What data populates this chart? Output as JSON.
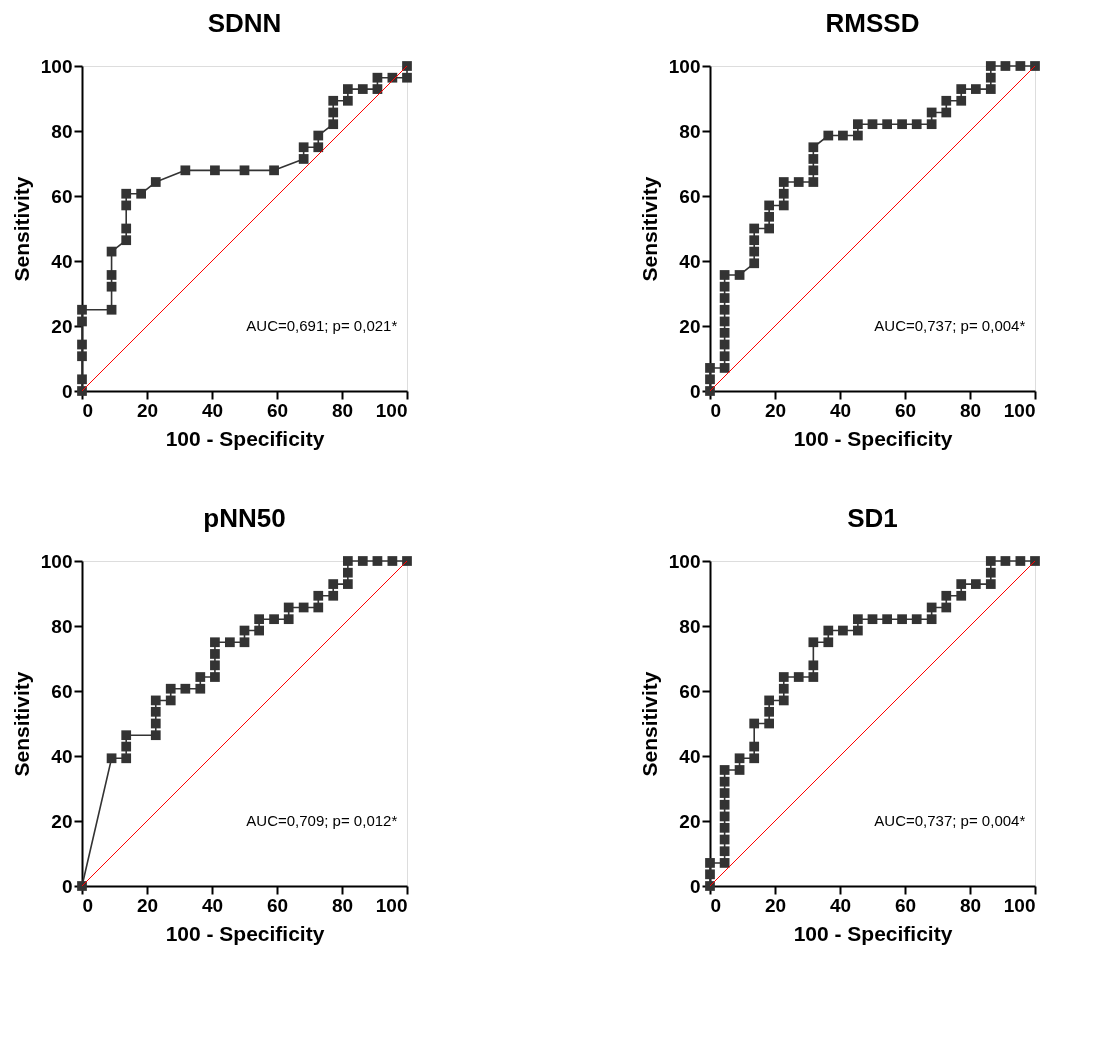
{
  "chart_data": [
    {
      "type": "line",
      "title": "SDNN",
      "xlabel": "100 - Specificity",
      "ylabel": "Sensitivity",
      "xlim": [
        0,
        100
      ],
      "ylim": [
        0,
        100
      ],
      "xticks": [
        0,
        20,
        40,
        60,
        80,
        100
      ],
      "yticks": [
        0,
        20,
        40,
        60,
        80,
        100
      ],
      "grid": false,
      "marker": "square",
      "annotations": [
        "AUC=0,691; p= 0,021*"
      ],
      "series": [
        {
          "color": "#333333",
          "x": [
            0,
            0,
            0,
            0,
            0,
            0,
            9.1,
            9.1,
            9.1,
            9.1,
            13.6,
            13.6,
            13.6,
            13.6,
            18.2,
            22.7,
            31.8,
            40.9,
            50,
            59.1,
            68.2,
            68.2,
            72.7,
            72.7,
            77.3,
            77.3,
            77.3,
            81.8,
            81.8,
            86.4,
            90.9,
            90.9,
            95.5,
            100,
            100
          ],
          "values": [
            0,
            3.6,
            10.7,
            14.3,
            21.4,
            25,
            25,
            32.1,
            35.7,
            42.9,
            46.4,
            50,
            57.1,
            60.7,
            60.7,
            64.3,
            67.9,
            67.9,
            67.9,
            67.9,
            71.4,
            75,
            75,
            78.6,
            82.1,
            85.7,
            89.3,
            89.3,
            92.9,
            92.9,
            92.9,
            96.4,
            96.4,
            96.4,
            100
          ]
        },
        {
          "color": "#ff0000",
          "marker": "none",
          "x": [
            0,
            100
          ],
          "values": [
            0,
            100
          ]
        }
      ]
    },
    {
      "type": "line",
      "title": "RMSSD",
      "xlabel": "100 - Specificity",
      "ylabel": "Sensitivity",
      "xlim": [
        0,
        100
      ],
      "ylim": [
        0,
        100
      ],
      "xticks": [
        0,
        20,
        40,
        60,
        80,
        100
      ],
      "yticks": [
        0,
        20,
        40,
        60,
        80,
        100
      ],
      "grid": false,
      "marker": "square",
      "annotations": [
        "AUC=0,737; p= 0,004*"
      ],
      "series": [
        {
          "color": "#333333",
          "x": [
            0,
            0,
            0,
            4.5,
            4.5,
            4.5,
            4.5,
            4.5,
            4.5,
            4.5,
            4.5,
            4.5,
            9.1,
            13.6,
            13.6,
            13.6,
            13.6,
            18.2,
            18.2,
            18.2,
            22.7,
            22.7,
            22.7,
            27.3,
            31.8,
            31.8,
            31.8,
            31.8,
            36.4,
            40.9,
            45.5,
            45.5,
            50,
            54.5,
            59.1,
            63.6,
            68.2,
            68.2,
            72.7,
            72.7,
            77.3,
            77.3,
            81.8,
            86.4,
            86.4,
            86.4,
            90.9,
            95.5,
            100
          ],
          "values": [
            0,
            3.6,
            7.1,
            7.1,
            10.7,
            14.3,
            17.9,
            21.4,
            25,
            28.6,
            32.1,
            35.7,
            35.7,
            39.3,
            42.9,
            46.4,
            50,
            50,
            53.6,
            57.1,
            57.1,
            60.7,
            64.3,
            64.3,
            64.3,
            67.9,
            71.4,
            75,
            78.6,
            78.6,
            78.6,
            82.1,
            82.1,
            82.1,
            82.1,
            82.1,
            82.1,
            85.7,
            85.7,
            89.3,
            89.3,
            92.9,
            92.9,
            92.9,
            96.4,
            100,
            100,
            100,
            100
          ]
        },
        {
          "color": "#ff0000",
          "marker": "none",
          "x": [
            0,
            100
          ],
          "values": [
            0,
            100
          ]
        }
      ]
    },
    {
      "type": "line",
      "title": "pNN50",
      "xlabel": "100 - Specificity",
      "ylabel": "Sensitivity",
      "xlim": [
        0,
        100
      ],
      "ylim": [
        0,
        100
      ],
      "xticks": [
        0,
        20,
        40,
        60,
        80,
        100
      ],
      "yticks": [
        0,
        20,
        40,
        60,
        80,
        100
      ],
      "grid": false,
      "marker": "square",
      "annotations": [
        "AUC=0,709; p= 0,012*"
      ],
      "series": [
        {
          "color": "#333333",
          "x": [
            0,
            9.1,
            13.6,
            13.6,
            13.6,
            22.7,
            22.7,
            22.7,
            22.7,
            27.3,
            27.3,
            31.8,
            36.4,
            36.4,
            40.9,
            40.9,
            40.9,
            40.9,
            45.5,
            50,
            50,
            54.5,
            54.5,
            59.1,
            63.6,
            63.6,
            68.2,
            72.7,
            72.7,
            77.3,
            77.3,
            81.8,
            81.8,
            81.8,
            86.4,
            90.9,
            95.5,
            100
          ],
          "values": [
            0,
            39.3,
            39.3,
            42.9,
            46.4,
            46.4,
            50,
            53.6,
            57.1,
            57.1,
            60.7,
            60.7,
            60.7,
            64.3,
            64.3,
            67.9,
            71.4,
            75,
            75,
            75,
            78.6,
            78.6,
            82.1,
            82.1,
            82.1,
            85.7,
            85.7,
            85.7,
            89.3,
            89.3,
            92.9,
            92.9,
            96.4,
            100,
            100,
            100,
            100,
            100
          ]
        },
        {
          "color": "#ff0000",
          "marker": "none",
          "x": [
            0,
            100
          ],
          "values": [
            0,
            100
          ]
        }
      ]
    },
    {
      "type": "line",
      "title": "SD1",
      "xlabel": "100 - Specificity",
      "ylabel": "Sensitivity",
      "xlim": [
        0,
        100
      ],
      "ylim": [
        0,
        100
      ],
      "xticks": [
        0,
        20,
        40,
        60,
        80,
        100
      ],
      "yticks": [
        0,
        20,
        40,
        60,
        80,
        100
      ],
      "grid": false,
      "marker": "square",
      "annotations": [
        "AUC=0,737; p= 0,004*"
      ],
      "series": [
        {
          "color": "#333333",
          "x": [
            0,
            0,
            0,
            4.5,
            4.5,
            4.5,
            4.5,
            4.5,
            4.5,
            4.5,
            4.5,
            4.5,
            9.1,
            9.1,
            13.6,
            13.6,
            13.6,
            18.2,
            18.2,
            18.2,
            22.7,
            22.7,
            22.7,
            27.3,
            31.8,
            31.8,
            31.8,
            36.4,
            36.4,
            40.9,
            45.5,
            45.5,
            50,
            54.5,
            59.1,
            63.6,
            68.2,
            68.2,
            72.7,
            72.7,
            77.3,
            77.3,
            81.8,
            86.4,
            86.4,
            86.4,
            90.9,
            95.5,
            100
          ],
          "values": [
            0,
            3.6,
            7.1,
            7.1,
            10.7,
            14.3,
            17.9,
            21.4,
            25,
            28.6,
            32.1,
            35.7,
            35.7,
            39.3,
            39.3,
            42.9,
            50,
            50,
            53.6,
            57.1,
            57.1,
            60.7,
            64.3,
            64.3,
            64.3,
            67.9,
            75,
            75,
            78.6,
            78.6,
            78.6,
            82.1,
            82.1,
            82.1,
            82.1,
            82.1,
            82.1,
            85.7,
            85.7,
            89.3,
            89.3,
            92.9,
            92.9,
            92.9,
            96.4,
            100,
            100,
            100,
            100
          ]
        },
        {
          "color": "#ff0000",
          "marker": "none",
          "x": [
            0,
            100
          ],
          "values": [
            0,
            100
          ]
        }
      ]
    }
  ]
}
